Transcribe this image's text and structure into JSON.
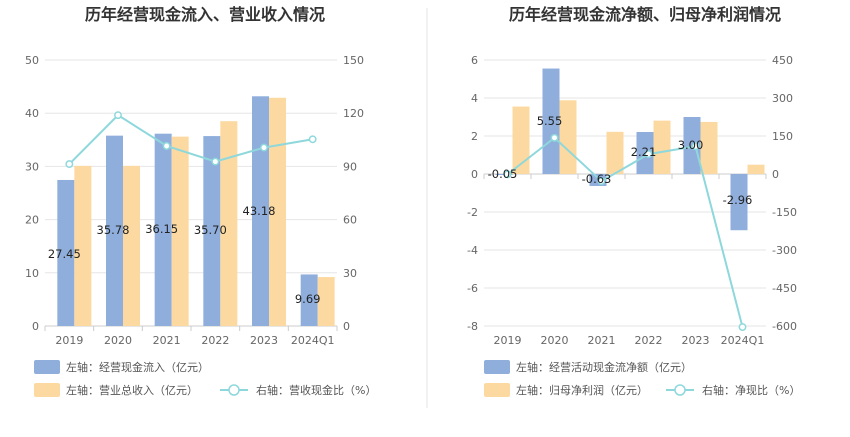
{
  "colors": {
    "cash_bar": "#8FAEDC",
    "revenue_bar": "#FCD9A0",
    "ratio_line": "#8ED8DC",
    "grid": "#E6E6E6",
    "divider": "#E6E6E6"
  },
  "chart_data": [
    {
      "type": "bar",
      "title": "历年经营现金流入、营业收入情况",
      "categories": [
        "2019",
        "2020",
        "2021",
        "2022",
        "2023",
        "2024Q1"
      ],
      "y_left": {
        "ticks": [
          "0",
          "10",
          "20",
          "30",
          "40",
          "50"
        ],
        "lim": [
          0,
          50
        ]
      },
      "y_right": {
        "ticks": [
          "0",
          "30",
          "60",
          "90",
          "120",
          "150"
        ],
        "lim": [
          0,
          150
        ]
      },
      "grid": true,
      "legend_position": "bottom",
      "series": [
        {
          "name": "左轴：经营现金流入（亿元）",
          "kind": "bar",
          "axis": "left",
          "values": [
            27.45,
            35.78,
            36.15,
            35.7,
            43.18,
            9.69
          ],
          "labels": [
            "27.45",
            "35.78",
            "36.15",
            "35.70",
            "43.18",
            "9.69"
          ]
        },
        {
          "name": "左轴：营业总收入（亿元）",
          "kind": "bar",
          "axis": "left",
          "values": [
            30.1,
            30.1,
            35.6,
            38.5,
            42.9,
            9.2
          ]
        },
        {
          "name": "右轴：营收现金比（%）",
          "kind": "line",
          "axis": "right",
          "values": [
            91.3,
            118.9,
            101.5,
            92.7,
            100.6,
            105.3
          ]
        }
      ]
    },
    {
      "type": "bar",
      "title": "历年经营现金流净额、归母净利润情况",
      "categories": [
        "2019",
        "2020",
        "2021",
        "2022",
        "2023",
        "2024Q1"
      ],
      "y_left": {
        "ticks": [
          "-8",
          "-6",
          "-4",
          "-2",
          "0",
          "2",
          "4",
          "6"
        ],
        "lim": [
          -8,
          6
        ]
      },
      "y_right": {
        "ticks": [
          "-600",
          "-450",
          "-300",
          "-150",
          "0",
          "150",
          "300",
          "450"
        ],
        "lim": [
          -600,
          450
        ]
      },
      "grid": true,
      "legend_position": "bottom",
      "series": [
        {
          "name": "左轴：经营活动现金流净额（亿元）",
          "kind": "bar",
          "axis": "left",
          "values": [
            -0.05,
            5.55,
            -0.63,
            2.21,
            3.0,
            -2.96
          ],
          "labels": [
            "-0.05",
            "5.55",
            "-0.63",
            "2.21",
            "3.00",
            "-2.96"
          ]
        },
        {
          "name": "左轴：归母净利润（亿元）",
          "kind": "bar",
          "axis": "left",
          "values": [
            3.55,
            3.88,
            2.22,
            2.81,
            2.74,
            0.49
          ]
        },
        {
          "name": "右轴：净现比（%）",
          "kind": "line",
          "axis": "right",
          "values": [
            -1.4,
            143.0,
            -28.4,
            78.6,
            109.5,
            -604.1
          ]
        }
      ]
    }
  ]
}
